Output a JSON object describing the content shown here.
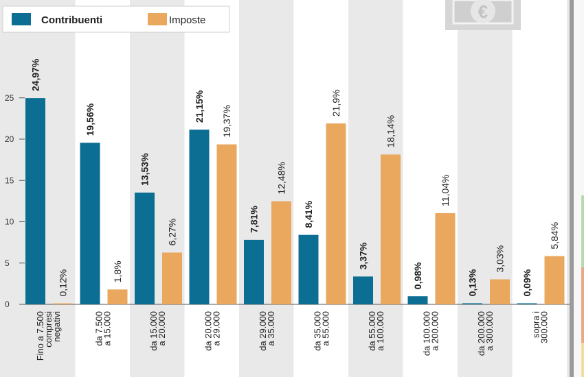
{
  "colors": {
    "contribuenti": "#0d6e93",
    "imposte": "#e9a85e",
    "background": "#e9e9e9",
    "band": "#ffffff"
  },
  "legend": {
    "contribuenti": "Contribuenti",
    "imposte": "Imposte"
  },
  "decoration": {
    "icon": "euro-banknote-icon",
    "symbol": "€"
  },
  "chart_data": {
    "type": "bar",
    "ylim": [
      0,
      27
    ],
    "yticks": [
      0,
      5,
      10,
      15,
      20,
      25
    ],
    "grid": false,
    "legend_position": "top-left",
    "categories": [
      [
        "Fino a 7.500",
        "compresi",
        "negativi"
      ],
      [
        "da 7.500",
        "a 15.000"
      ],
      [
        "da 15.000",
        "a 20.000"
      ],
      [
        "da 20.000",
        "a 29.000"
      ],
      [
        "da 29.000",
        "a 35.000"
      ],
      [
        "da 35.000",
        "a 55.000"
      ],
      [
        "da 55.000",
        "a 100.000"
      ],
      [
        "da 100.000",
        "a 200.000"
      ],
      [
        "da 200.000",
        "a 300.000"
      ],
      [
        "sopra i",
        "300.000"
      ]
    ],
    "series": [
      {
        "name": "Contribuenti",
        "values": [
          24.97,
          19.56,
          13.53,
          21.15,
          7.81,
          8.41,
          3.37,
          0.98,
          0.13,
          0.09
        ],
        "labels": [
          "24,97%",
          "19,56%",
          "13,53%",
          "21,15%",
          "7,81%",
          "8,41%",
          "3,37%",
          "0,98%",
          "0,13%",
          "0,09%"
        ]
      },
      {
        "name": "Imposte",
        "values": [
          0.12,
          1.8,
          6.27,
          19.37,
          12.48,
          21.9,
          18.14,
          11.04,
          3.03,
          5.84
        ],
        "labels": [
          "0,12%",
          "1,8%",
          "6,27%",
          "19,37%",
          "12,48%",
          "21,9%",
          "18,14%",
          "11,04%",
          "3,03%",
          "5,84%"
        ]
      }
    ]
  }
}
